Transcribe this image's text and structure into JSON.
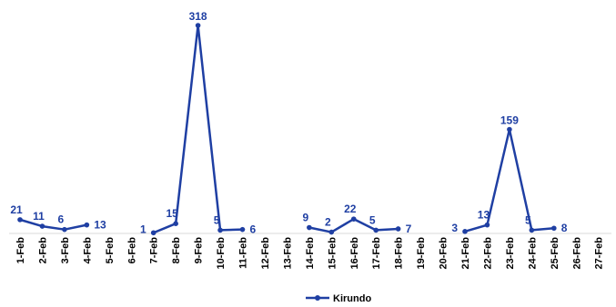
{
  "chart_data": {
    "type": "line",
    "categories": [
      "1-Feb",
      "2-Feb",
      "3-Feb",
      "4-Feb",
      "5-Feb",
      "6-Feb",
      "7-Feb",
      "8-Feb",
      "9-Feb",
      "10-Feb",
      "11-Feb",
      "12-Feb",
      "13-Feb",
      "14-Feb",
      "15-Feb",
      "16-Feb",
      "17-Feb",
      "18-Feb",
      "19-Feb",
      "20-Feb",
      "21-Feb",
      "22-Feb",
      "23-Feb",
      "24-Feb",
      "25-Feb",
      "26-Feb",
      "27-Feb"
    ],
    "series": [
      {
        "name": "Kirundo",
        "color": "#1F3FA3",
        "values": [
          21,
          11,
          6,
          13,
          null,
          null,
          1,
          15,
          318,
          5,
          6,
          null,
          null,
          9,
          2,
          22,
          5,
          7,
          null,
          null,
          3,
          13,
          159,
          5,
          8,
          null,
          null
        ]
      }
    ],
    "ylim": [
      0,
      330
    ],
    "grid": false,
    "legend": "bottom-center",
    "data_labels": true
  }
}
